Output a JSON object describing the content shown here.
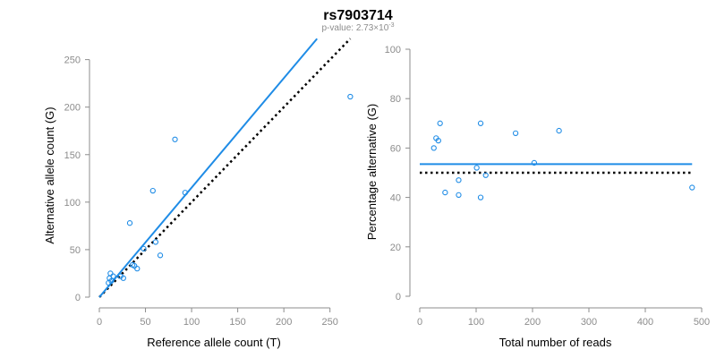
{
  "title": "rs7903714",
  "subtitle": {
    "prefix": "p-value: 2.73×10",
    "exponent": "-3"
  },
  "colors": {
    "fit_line": "#1f8ce6",
    "points": "#1f8ce6",
    "reference_line": "#000000",
    "axis": "#8c8c8c"
  },
  "chart_data": [
    {
      "type": "scatter",
      "xlabel": "Reference allele count (T)",
      "ylabel": "Alternative allele count (G)",
      "xlim": [
        0,
        260
      ],
      "ylim": [
        0,
        260
      ],
      "xticks": [
        0,
        50,
        100,
        150,
        200,
        250
      ],
      "yticks": [
        0,
        50,
        100,
        150,
        200,
        250
      ],
      "points": [
        {
          "x": 10,
          "y": 15
        },
        {
          "x": 11,
          "y": 20
        },
        {
          "x": 12,
          "y": 25
        },
        {
          "x": 13,
          "y": 17
        },
        {
          "x": 15,
          "y": 22
        },
        {
          "x": 23,
          "y": 22
        },
        {
          "x": 26,
          "y": 20
        },
        {
          "x": 33,
          "y": 78
        },
        {
          "x": 36,
          "y": 34
        },
        {
          "x": 38,
          "y": 33
        },
        {
          "x": 41,
          "y": 30
        },
        {
          "x": 48,
          "y": 51
        },
        {
          "x": 58,
          "y": 112
        },
        {
          "x": 61,
          "y": 58
        },
        {
          "x": 66,
          "y": 44
        },
        {
          "x": 82,
          "y": 166
        },
        {
          "x": 93,
          "y": 110
        },
        {
          "x": 272,
          "y": 211
        }
      ],
      "fit_line": {
        "from": [
          0,
          0
        ],
        "to": [
          236,
          272
        ]
      },
      "reference_line": {
        "from": [
          0,
          0
        ],
        "to": [
          272,
          272
        ],
        "style": "dotted"
      },
      "grid": false,
      "legend": "none"
    },
    {
      "type": "scatter",
      "xlabel": "Total number of reads",
      "ylabel": "Percentage alternative (G)",
      "xlim": [
        0,
        500
      ],
      "ylim": [
        0,
        100
      ],
      "xticks": [
        0,
        100,
        200,
        300,
        400,
        500
      ],
      "yticks": [
        0,
        20,
        40,
        60,
        80,
        100
      ],
      "points": [
        {
          "x": 25,
          "y": 60
        },
        {
          "x": 29,
          "y": 64
        },
        {
          "x": 33,
          "y": 63
        },
        {
          "x": 36,
          "y": 70
        },
        {
          "x": 45,
          "y": 42
        },
        {
          "x": 69,
          "y": 47
        },
        {
          "x": 69,
          "y": 41
        },
        {
          "x": 101,
          "y": 52
        },
        {
          "x": 108,
          "y": 70
        },
        {
          "x": 108,
          "y": 40
        },
        {
          "x": 117,
          "y": 49
        },
        {
          "x": 170,
          "y": 66
        },
        {
          "x": 203,
          "y": 54
        },
        {
          "x": 247,
          "y": 67
        },
        {
          "x": 483,
          "y": 44
        }
      ],
      "fit_line": {
        "y": 53.5,
        "from_x": 0,
        "to_x": 483
      },
      "reference_line": {
        "y": 50,
        "from_x": 0,
        "to_x": 483,
        "style": "dotted"
      },
      "grid": false,
      "legend": "none"
    }
  ]
}
